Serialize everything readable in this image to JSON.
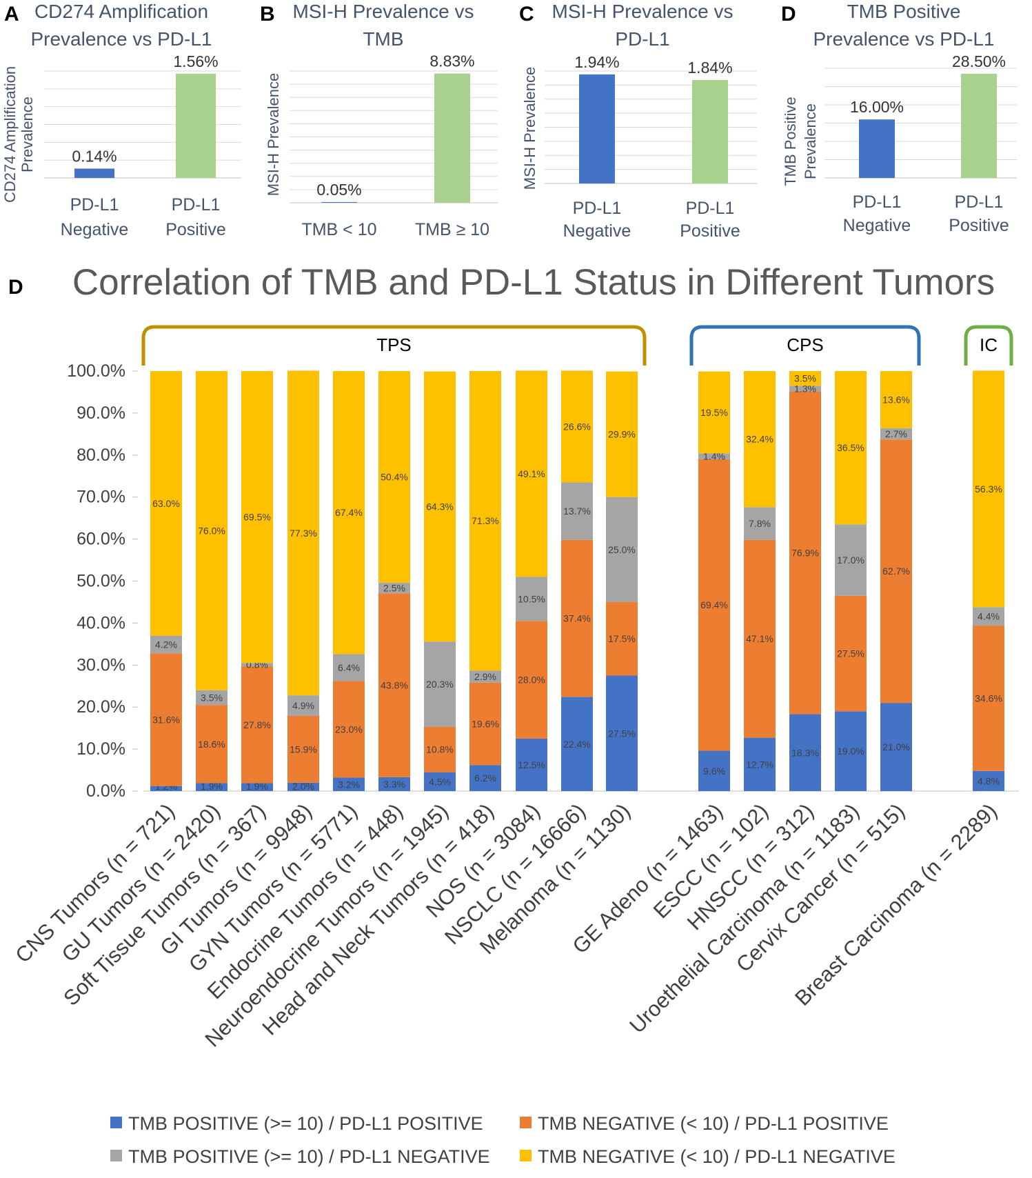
{
  "colors": {
    "blue": "#4472C4",
    "orange": "#ED7D31",
    "gray": "#A5A5A5",
    "yellow": "#FFC000",
    "green": "#A9D18E",
    "title_dark": "#44546A",
    "grid": "#D9D9D9",
    "label": "#404040",
    "tps_bracket": "#BF9000",
    "cps_bracket": "#2E75B6",
    "ic_bracket": "#70AD47"
  },
  "chart_data": [
    {
      "id": "A",
      "panel_letter": "A",
      "type": "bar",
      "title_lines": [
        "CD274 Amplification",
        "Prevalence vs PD-L1"
      ],
      "ylabel_lines": [
        "CD274 Amplification",
        "Prevalence"
      ],
      "categories": [
        [
          "PD-L1",
          "Negative"
        ],
        [
          "PD-L1",
          "Positive"
        ]
      ],
      "values": [
        0.14,
        1.56
      ],
      "labels": [
        "0.14%",
        "1.56%"
      ],
      "ylim": [
        0,
        1.6
      ]
    },
    {
      "id": "B",
      "panel_letter": "B",
      "type": "bar",
      "title_lines": [
        "MSI-H Prevalence vs",
        "TMB"
      ],
      "ylabel_lines": [
        "MSI-H Prevalence"
      ],
      "categories": [
        [
          "TMB < 10"
        ],
        [
          "TMB ≥ 10"
        ]
      ],
      "values": [
        0.05,
        8.83
      ],
      "labels": [
        "0.05%",
        "8.83%"
      ],
      "ylim": [
        0,
        9
      ]
    },
    {
      "id": "C",
      "panel_letter": "C",
      "type": "bar",
      "title_lines": [
        "MSI-H Prevalence vs",
        "PD-L1"
      ],
      "ylabel_lines": [
        "MSI-H Prevalence"
      ],
      "categories": [
        [
          "PD-L1",
          "Negative"
        ],
        [
          "PD-L1",
          "Positive"
        ]
      ],
      "values": [
        1.94,
        1.84
      ],
      "labels": [
        "1.94%",
        "1.84%"
      ],
      "ylim": [
        0,
        2
      ]
    },
    {
      "id": "D1",
      "panel_letter": "D",
      "type": "bar",
      "title_lines": [
        "TMB Positive",
        "Prevalence vs PD-L1"
      ],
      "ylabel_lines": [
        "TMB Positive",
        "Prevalence"
      ],
      "categories": [
        [
          "PD-L1",
          "Negative"
        ],
        [
          "PD-L1",
          "Positive"
        ]
      ],
      "values": [
        16.0,
        28.5
      ],
      "labels": [
        "16.00%",
        "28.50%"
      ],
      "ylim": [
        0,
        30
      ]
    },
    {
      "id": "D2",
      "panel_letter": "D",
      "type": "bar",
      "stacked": true,
      "title": "Correlation of TMB and PD-L1 Status in Different Tumors",
      "ylim": [
        0,
        100
      ],
      "yticks": [
        "0.0%",
        "10.0%",
        "20.0%",
        "30.0%",
        "40.0%",
        "50.0%",
        "60.0%",
        "70.0%",
        "80.0%",
        "90.0%",
        "100.0%"
      ],
      "groups": [
        {
          "label": "TPS",
          "start": 0,
          "end": 10
        },
        {
          "label": "CPS",
          "start": 11,
          "end": 15
        },
        {
          "label": "IC",
          "start": 16,
          "end": 16
        }
      ],
      "categories": [
        "CNS Tumors (n = 721)",
        "GU Tumors (n = 2420)",
        "Soft Tissue Tumors (n = 367)",
        "GI Tumors (n = 9948)",
        "GYN Tumors (n = 5771)",
        "Endocrine Tumors (n = 448)",
        "Neuroendocrine Tumors (n = 1945)",
        "Head and Neck Tumors (n = 418)",
        "NOS (n = 3084)",
        "NSCLC (n = 16666)",
        "Melanoma (n = 1130)",
        "GE Adeno (n = 1463)",
        "ESCC (n = 102)",
        "HNSCC (n = 312)",
        "Uroethelial Carcinoma (n = 1183)",
        "Cervix Cancer (n = 515)",
        "Breast Carcinoma (n = 2289)"
      ],
      "series": [
        {
          "name": "TMB POSITIVE (>= 10) / PD-L1 POSITIVE",
          "color": "#4472C4",
          "values": [
            1.2,
            1.9,
            1.9,
            2.0,
            3.2,
            3.3,
            4.5,
            6.2,
            12.5,
            22.4,
            27.5,
            9.6,
            12.7,
            18.3,
            19.0,
            21.0,
            4.8
          ]
        },
        {
          "name": "TMB NEGATIVE (< 10) / PD-L1 POSITIVE",
          "color": "#ED7D31",
          "values": [
            31.6,
            18.6,
            27.8,
            15.9,
            23.0,
            43.8,
            10.8,
            19.6,
            28.0,
            37.4,
            17.5,
            69.4,
            47.1,
            76.9,
            27.5,
            62.7,
            34.6
          ]
        },
        {
          "name": "TMB POSITIVE (>= 10) / PD-L1 NEGATIVE",
          "color": "#A5A5A5",
          "values": [
            4.2,
            3.5,
            0.8,
            4.9,
            6.4,
            2.5,
            20.3,
            2.9,
            10.5,
            13.7,
            25.0,
            1.4,
            7.8,
            1.3,
            17.0,
            2.7,
            4.4
          ]
        },
        {
          "name": "TMB NEGATIVE (< 10) / PD-L1 NEGATIVE",
          "color": "#FFC000",
          "values": [
            63.0,
            76.0,
            69.5,
            77.3,
            67.4,
            50.4,
            64.3,
            71.3,
            49.1,
            26.6,
            29.9,
            19.5,
            32.4,
            3.5,
            36.5,
            13.6,
            56.3
          ]
        }
      ],
      "legend_position": "bottom"
    }
  ]
}
